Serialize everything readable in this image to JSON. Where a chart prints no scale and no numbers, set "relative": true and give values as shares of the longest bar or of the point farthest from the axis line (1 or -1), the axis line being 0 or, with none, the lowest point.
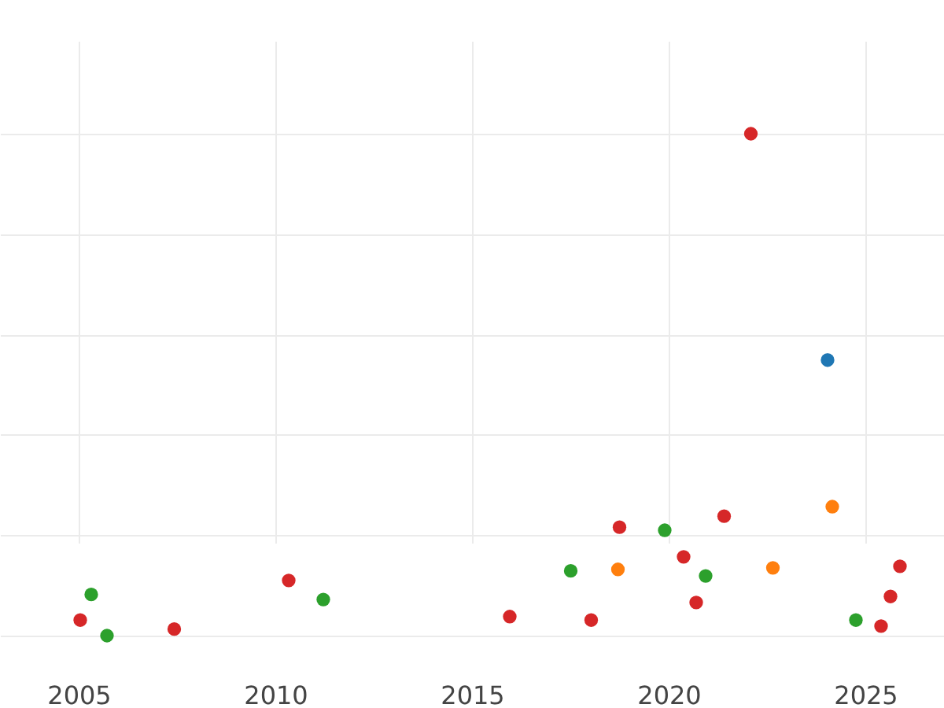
{
  "chart_data": {
    "type": "scatter",
    "relative": true,
    "xlim": [
      2003,
      2027
    ],
    "xticks": [
      2005,
      2010,
      2015,
      2020,
      2025
    ],
    "grid": true,
    "legend": false,
    "marker": "circle",
    "series": [
      {
        "color": "#d62728",
        "x": [
          2005.04,
          2007.43,
          2010.34,
          2015.96,
          2018.03,
          2018.75,
          2020.38,
          2020.7,
          2021.41,
          2022.09,
          2025.4,
          2025.64,
          2025.88
        ],
        "values": [
          0.031,
          0.013,
          0.11,
          0.038,
          0.031,
          0.216,
          0.157,
          0.066,
          0.238,
          1,
          0.019,
          0.078,
          0.138
        ]
      },
      {
        "color": "#2ca02c",
        "x": [
          2005.32,
          2005.72,
          2011.22,
          2017.51,
          2019.9,
          2020.94,
          2024.76
        ],
        "values": [
          0.082,
          0,
          0.072,
          0.129,
          0.21,
          0.119,
          0.031
        ]
      },
      {
        "color": "#ff7f0e",
        "x": [
          2018.71,
          2022.65,
          2024.16
        ],
        "values": [
          0.132,
          0.135,
          0.257
        ]
      },
      {
        "color": "#1f77b4",
        "x": [
          2024.04
        ],
        "values": [
          0.549
        ]
      }
    ]
  }
}
